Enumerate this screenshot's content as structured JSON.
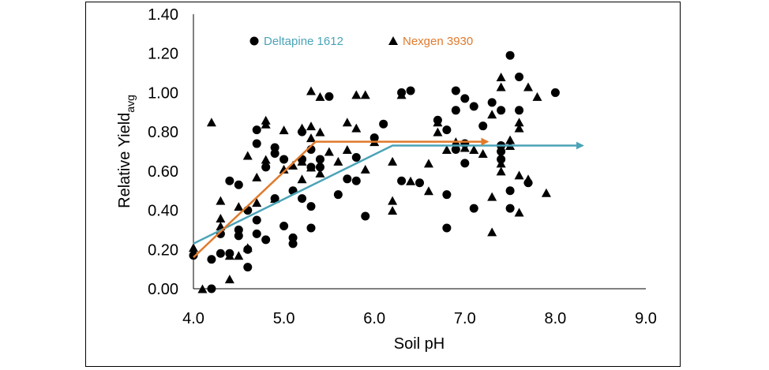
{
  "chart_data": {
    "type": "scatter",
    "title": "",
    "xlabel": "Soil pH",
    "ylabel": {
      "main": "Relative Yield",
      "subscript": "avg"
    },
    "xlim": [
      4.0,
      9.0
    ],
    "ylim": [
      0.0,
      1.4
    ],
    "xticks": [
      "4.0",
      "5.0",
      "6.0",
      "7.0",
      "8.0",
      "9.0"
    ],
    "yticks": [
      "0.00",
      "0.20",
      "0.40",
      "0.60",
      "0.80",
      "1.00",
      "1.20",
      "1.40"
    ],
    "legend_position": "top-left",
    "colors": {
      "deltapine_line": "#4BA3B8",
      "nexgen_line": "#E07A2C",
      "markers": "#000000"
    },
    "series": [
      {
        "name": "Deltapine 1612",
        "marker": "circle",
        "color": "#4BA3B8",
        "points": [
          [
            4.0,
            0.17
          ],
          [
            4.2,
            0.15
          ],
          [
            4.2,
            0.0
          ],
          [
            4.3,
            0.18
          ],
          [
            4.3,
            0.28
          ],
          [
            4.4,
            0.55
          ],
          [
            4.4,
            0.18
          ],
          [
            4.5,
            0.53
          ],
          [
            4.5,
            0.27
          ],
          [
            4.5,
            0.3
          ],
          [
            4.6,
            0.2
          ],
          [
            4.6,
            0.11
          ],
          [
            4.6,
            0.4
          ],
          [
            4.7,
            0.81
          ],
          [
            4.7,
            0.74
          ],
          [
            4.7,
            0.35
          ],
          [
            4.7,
            0.28
          ],
          [
            4.8,
            0.62
          ],
          [
            4.8,
            0.25
          ],
          [
            4.9,
            0.72
          ],
          [
            4.9,
            0.69
          ],
          [
            4.9,
            0.46
          ],
          [
            5.0,
            0.66
          ],
          [
            5.0,
            0.32
          ],
          [
            5.1,
            0.26
          ],
          [
            5.1,
            0.23
          ],
          [
            5.1,
            0.5
          ],
          [
            5.2,
            0.8
          ],
          [
            5.2,
            0.66
          ],
          [
            5.2,
            0.46
          ],
          [
            5.3,
            0.71
          ],
          [
            5.3,
            0.62
          ],
          [
            5.3,
            0.42
          ],
          [
            5.3,
            0.31
          ],
          [
            5.4,
            0.66
          ],
          [
            5.4,
            0.62
          ],
          [
            5.5,
            0.98
          ],
          [
            5.6,
            0.48
          ],
          [
            5.7,
            0.56
          ],
          [
            5.8,
            0.55
          ],
          [
            5.8,
            0.67
          ],
          [
            5.9,
            0.37
          ],
          [
            6.0,
            0.77
          ],
          [
            6.1,
            0.84
          ],
          [
            6.3,
            1.0
          ],
          [
            6.3,
            0.55
          ],
          [
            6.4,
            1.01
          ],
          [
            6.5,
            0.54
          ],
          [
            6.7,
            0.86
          ],
          [
            6.8,
            0.81
          ],
          [
            6.8,
            0.48
          ],
          [
            6.8,
            0.31
          ],
          [
            6.9,
            1.01
          ],
          [
            6.9,
            0.91
          ],
          [
            6.9,
            0.71
          ],
          [
            7.0,
            0.97
          ],
          [
            7.0,
            0.74
          ],
          [
            7.0,
            0.64
          ],
          [
            7.1,
            0.93
          ],
          [
            7.1,
            0.41
          ],
          [
            7.2,
            0.83
          ],
          [
            7.3,
            0.95
          ],
          [
            7.4,
            0.91
          ],
          [
            7.4,
            0.73
          ],
          [
            7.4,
            0.7
          ],
          [
            7.4,
            0.66
          ],
          [
            7.5,
            1.19
          ],
          [
            7.5,
            0.5
          ],
          [
            7.5,
            0.41
          ],
          [
            7.6,
            1.08
          ],
          [
            7.6,
            0.91
          ],
          [
            7.7,
            0.54
          ],
          [
            8.0,
            1.0
          ]
        ],
        "fit_line": [
          [
            4.0,
            0.23
          ],
          [
            6.2,
            0.73
          ],
          [
            8.3,
            0.73
          ]
        ]
      },
      {
        "name": "Nexgen 3930",
        "marker": "triangle",
        "color": "#E07A2C",
        "points": [
          [
            4.0,
            0.21
          ],
          [
            4.1,
            0.0
          ],
          [
            4.2,
            0.85
          ],
          [
            4.3,
            0.45
          ],
          [
            4.3,
            0.36
          ],
          [
            4.3,
            0.32
          ],
          [
            4.4,
            0.05
          ],
          [
            4.4,
            0.17
          ],
          [
            4.5,
            0.17
          ],
          [
            4.5,
            0.42
          ],
          [
            4.6,
            0.68
          ],
          [
            4.6,
            0.21
          ],
          [
            4.7,
            0.57
          ],
          [
            4.7,
            0.44
          ],
          [
            4.8,
            0.86
          ],
          [
            4.8,
            0.84
          ],
          [
            4.8,
            0.66
          ],
          [
            4.9,
            0.46
          ],
          [
            5.0,
            0.81
          ],
          [
            5.0,
            0.61
          ],
          [
            5.1,
            0.63
          ],
          [
            5.2,
            0.82
          ],
          [
            5.2,
            0.65
          ],
          [
            5.2,
            0.56
          ],
          [
            5.3,
            1.01
          ],
          [
            5.3,
            0.83
          ],
          [
            5.3,
            0.77
          ],
          [
            5.3,
            0.62
          ],
          [
            5.4,
            0.98
          ],
          [
            5.4,
            0.8
          ],
          [
            5.4,
            0.59
          ],
          [
            5.5,
            0.7
          ],
          [
            5.6,
            0.65
          ],
          [
            5.7,
            0.85
          ],
          [
            5.7,
            0.71
          ],
          [
            5.8,
            0.99
          ],
          [
            5.8,
            0.82
          ],
          [
            5.9,
            0.99
          ],
          [
            5.9,
            0.61
          ],
          [
            6.0,
            0.75
          ],
          [
            6.2,
            0.65
          ],
          [
            6.2,
            0.45
          ],
          [
            6.2,
            0.4
          ],
          [
            6.3,
            0.99
          ],
          [
            6.4,
            0.55
          ],
          [
            6.6,
            0.64
          ],
          [
            6.6,
            0.5
          ],
          [
            6.7,
            0.85
          ],
          [
            6.7,
            0.8
          ],
          [
            6.8,
            0.71
          ],
          [
            6.9,
            0.75
          ],
          [
            7.0,
            0.72
          ],
          [
            7.1,
            0.71
          ],
          [
            7.2,
            0.69
          ],
          [
            7.3,
            0.47
          ],
          [
            7.3,
            0.29
          ],
          [
            7.3,
            0.89
          ],
          [
            7.4,
            1.08
          ],
          [
            7.4,
            1.03
          ],
          [
            7.4,
            0.64
          ],
          [
            7.4,
            0.6
          ],
          [
            7.5,
            0.76
          ],
          [
            7.5,
            0.73
          ],
          [
            7.6,
            0.58
          ],
          [
            7.6,
            0.39
          ],
          [
            7.6,
            0.85
          ],
          [
            7.6,
            0.82
          ],
          [
            7.7,
            0.56
          ],
          [
            7.7,
            1.03
          ],
          [
            7.8,
            0.98
          ],
          [
            7.9,
            0.49
          ]
        ],
        "fit_line": [
          [
            4.0,
            0.16
          ],
          [
            5.35,
            0.75
          ],
          [
            7.25,
            0.75
          ]
        ]
      }
    ]
  }
}
